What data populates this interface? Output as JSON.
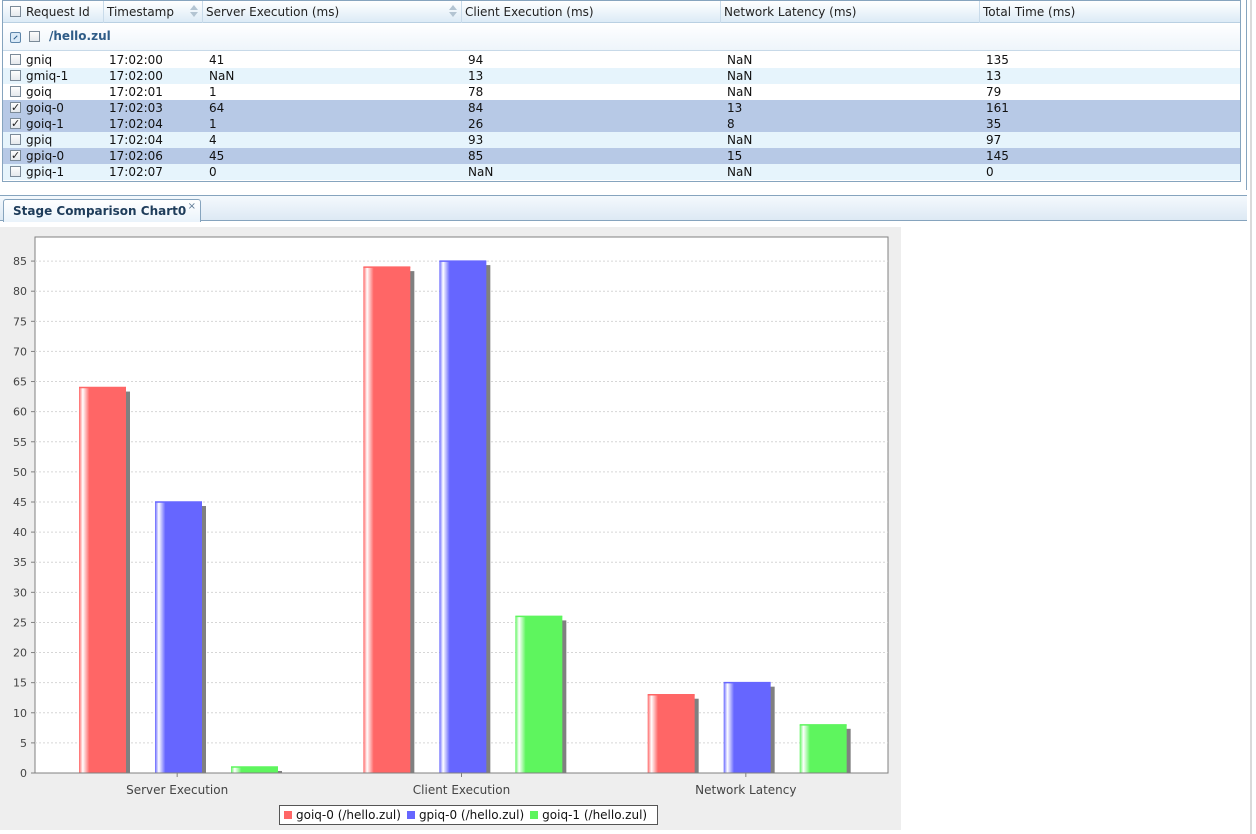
{
  "grid": {
    "columns": [
      {
        "label": "Request Id",
        "sortable": false
      },
      {
        "label": "Timestamp",
        "sortable": true
      },
      {
        "label": "Server Execution (ms)",
        "sortable": true
      },
      {
        "label": "Client Execution (ms)",
        "sortable": false
      },
      {
        "label": "Network Latency (ms)",
        "sortable": false
      },
      {
        "label": "Total Time (ms)",
        "sortable": false
      }
    ],
    "group": {
      "title": "/hello.zul"
    },
    "rows": [
      {
        "id": "gniq",
        "timestamp": "17:02:00",
        "server": "41",
        "client": "94",
        "latency": "NaN",
        "total": "135",
        "checked": false
      },
      {
        "id": "gmiq-1",
        "timestamp": "17:02:00",
        "server": "NaN",
        "client": "13",
        "latency": "NaN",
        "total": "13",
        "checked": false
      },
      {
        "id": "goiq",
        "timestamp": "17:02:01",
        "server": "1",
        "client": "78",
        "latency": "NaN",
        "total": "79",
        "checked": false
      },
      {
        "id": "goiq-0",
        "timestamp": "17:02:03",
        "server": "64",
        "client": "84",
        "latency": "13",
        "total": "161",
        "checked": true
      },
      {
        "id": "goiq-1",
        "timestamp": "17:02:04",
        "server": "1",
        "client": "26",
        "latency": "8",
        "total": "35",
        "checked": true
      },
      {
        "id": "gpiq",
        "timestamp": "17:02:04",
        "server": "4",
        "client": "93",
        "latency": "NaN",
        "total": "97",
        "checked": false
      },
      {
        "id": "gpiq-0",
        "timestamp": "17:02:06",
        "server": "45",
        "client": "85",
        "latency": "15",
        "total": "145",
        "checked": true
      },
      {
        "id": "gpiq-1",
        "timestamp": "17:02:07",
        "server": "0",
        "client": "NaN",
        "latency": "NaN",
        "total": "0",
        "checked": false
      }
    ]
  },
  "tabs": [
    {
      "label": "Stage Comparison Chart0",
      "close": "×"
    }
  ],
  "chart_data": {
    "type": "bar",
    "categories": [
      "Server Execution",
      "Client Execution",
      "Network Latency"
    ],
    "series": [
      {
        "name": "goiq-0 (/hello.zul)",
        "values": [
          64,
          84,
          13
        ],
        "color": "#ff6666"
      },
      {
        "name": "gpiq-0 (/hello.zul)",
        "values": [
          45,
          85,
          15
        ],
        "color": "#6666ff"
      },
      {
        "name": "goiq-1 (/hello.zul)",
        "values": [
          1,
          26,
          8
        ],
        "color": "#5ef55e"
      }
    ],
    "yticks": [
      "0",
      "5",
      "10",
      "15",
      "20",
      "25",
      "30",
      "35",
      "40",
      "45",
      "50",
      "55",
      "60",
      "65",
      "70",
      "75",
      "80",
      "85"
    ],
    "ylim": [
      0,
      89
    ],
    "grid": true,
    "legend": "bottom"
  }
}
